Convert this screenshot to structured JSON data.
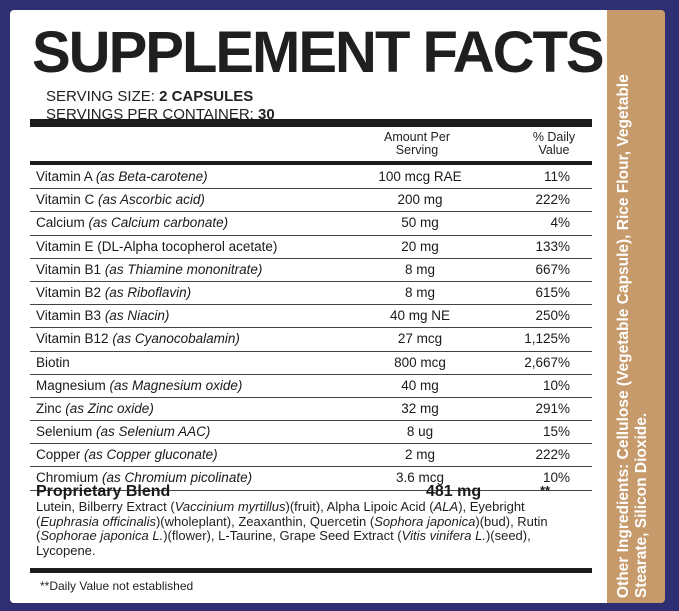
{
  "title": "SUPPLEMENT FACTS",
  "serving_size_label": "SERVING SIZE:",
  "serving_size_value": "2 CAPSULES",
  "servings_label": "SERVINGS PER CONTAINER:",
  "servings_value": "30",
  "header": {
    "amount_line1": "Amount Per",
    "amount_line2": "Serving",
    "dv_line1": "% Daily",
    "dv_line2": "Value"
  },
  "rows": [
    {
      "name": "Vitamin A",
      "source": "(as Beta-carotene)",
      "amount": "100 mcg RAE",
      "dv": "11%"
    },
    {
      "name": "Vitamin C",
      "source": "(as Ascorbic acid)",
      "amount": "200 mg",
      "dv": "222%"
    },
    {
      "name": "Calcium",
      "source": "(as Calcium carbonate)",
      "amount": "50 mg",
      "dv": "4%"
    },
    {
      "name": "Vitamin E (DL-Alpha tocopherol acetate)",
      "source": "",
      "amount": "20 mg",
      "dv": "133%"
    },
    {
      "name": "Vitamin B1",
      "source": "(as Thiamine mononitrate)",
      "amount": "8 mg",
      "dv": "667%"
    },
    {
      "name": "Vitamin B2",
      "source": "(as Riboflavin)",
      "amount": "8 mg",
      "dv": "615%"
    },
    {
      "name": "Vitamin B3",
      "source": "(as Niacin)",
      "amount": "40 mg NE",
      "dv": "250%"
    },
    {
      "name": "Vitamin B12",
      "source": "(as Cyanocobalamin)",
      "amount": "27 mcg",
      "dv": "1,125%"
    },
    {
      "name": "Biotin",
      "source": "",
      "amount": "800 mcg",
      "dv": "2,667%"
    },
    {
      "name": "Magnesium",
      "source": "(as Magnesium oxide)",
      "amount": "40 mg",
      "dv": "10%"
    },
    {
      "name": "Zinc",
      "source": "(as Zinc oxide)",
      "amount": "32 mg",
      "dv": "291%"
    },
    {
      "name": "Selenium",
      "source": "(as Selenium AAC)",
      "amount": "8 ug",
      "dv": "15%"
    },
    {
      "name": "Copper",
      "source": "(as Copper gluconate)",
      "amount": "2 mg",
      "dv": "222%"
    },
    {
      "name": "Chromium",
      "source": "(as Chromium picolinate)",
      "amount": "3.6 mcg",
      "dv": "10%"
    }
  ],
  "blend": {
    "name": "Proprietary Blend",
    "amount": "481 mg",
    "dv": "**",
    "description": "Lutein, Bilberry Extract (Vaccinium myrtillus)(fruit), Alpha Lipoic Acid (ALA), Eyebright (Euphrasia officinalis)(wholeplant), Zeaxanthin, Quercetin (Sophora japonica)(bud), Rutin (Sophorae japonica L.)(flower), L-Taurine, Grape Seed Extract (Vitis vinifera L.)(seed), Lycopene."
  },
  "footnote": "**Daily Value not established",
  "other_ingredients_label": "Other Ingredients:",
  "other_ingredients": "Cellulose (Vegetable Capsule), Rice Flour, Vegetable Stearate, Silicon Dioxide.",
  "colors": {
    "background": "#2e2f73",
    "side_panel": "#c69a6a",
    "panel": "#ffffff",
    "rules": "#1c1c1c"
  }
}
